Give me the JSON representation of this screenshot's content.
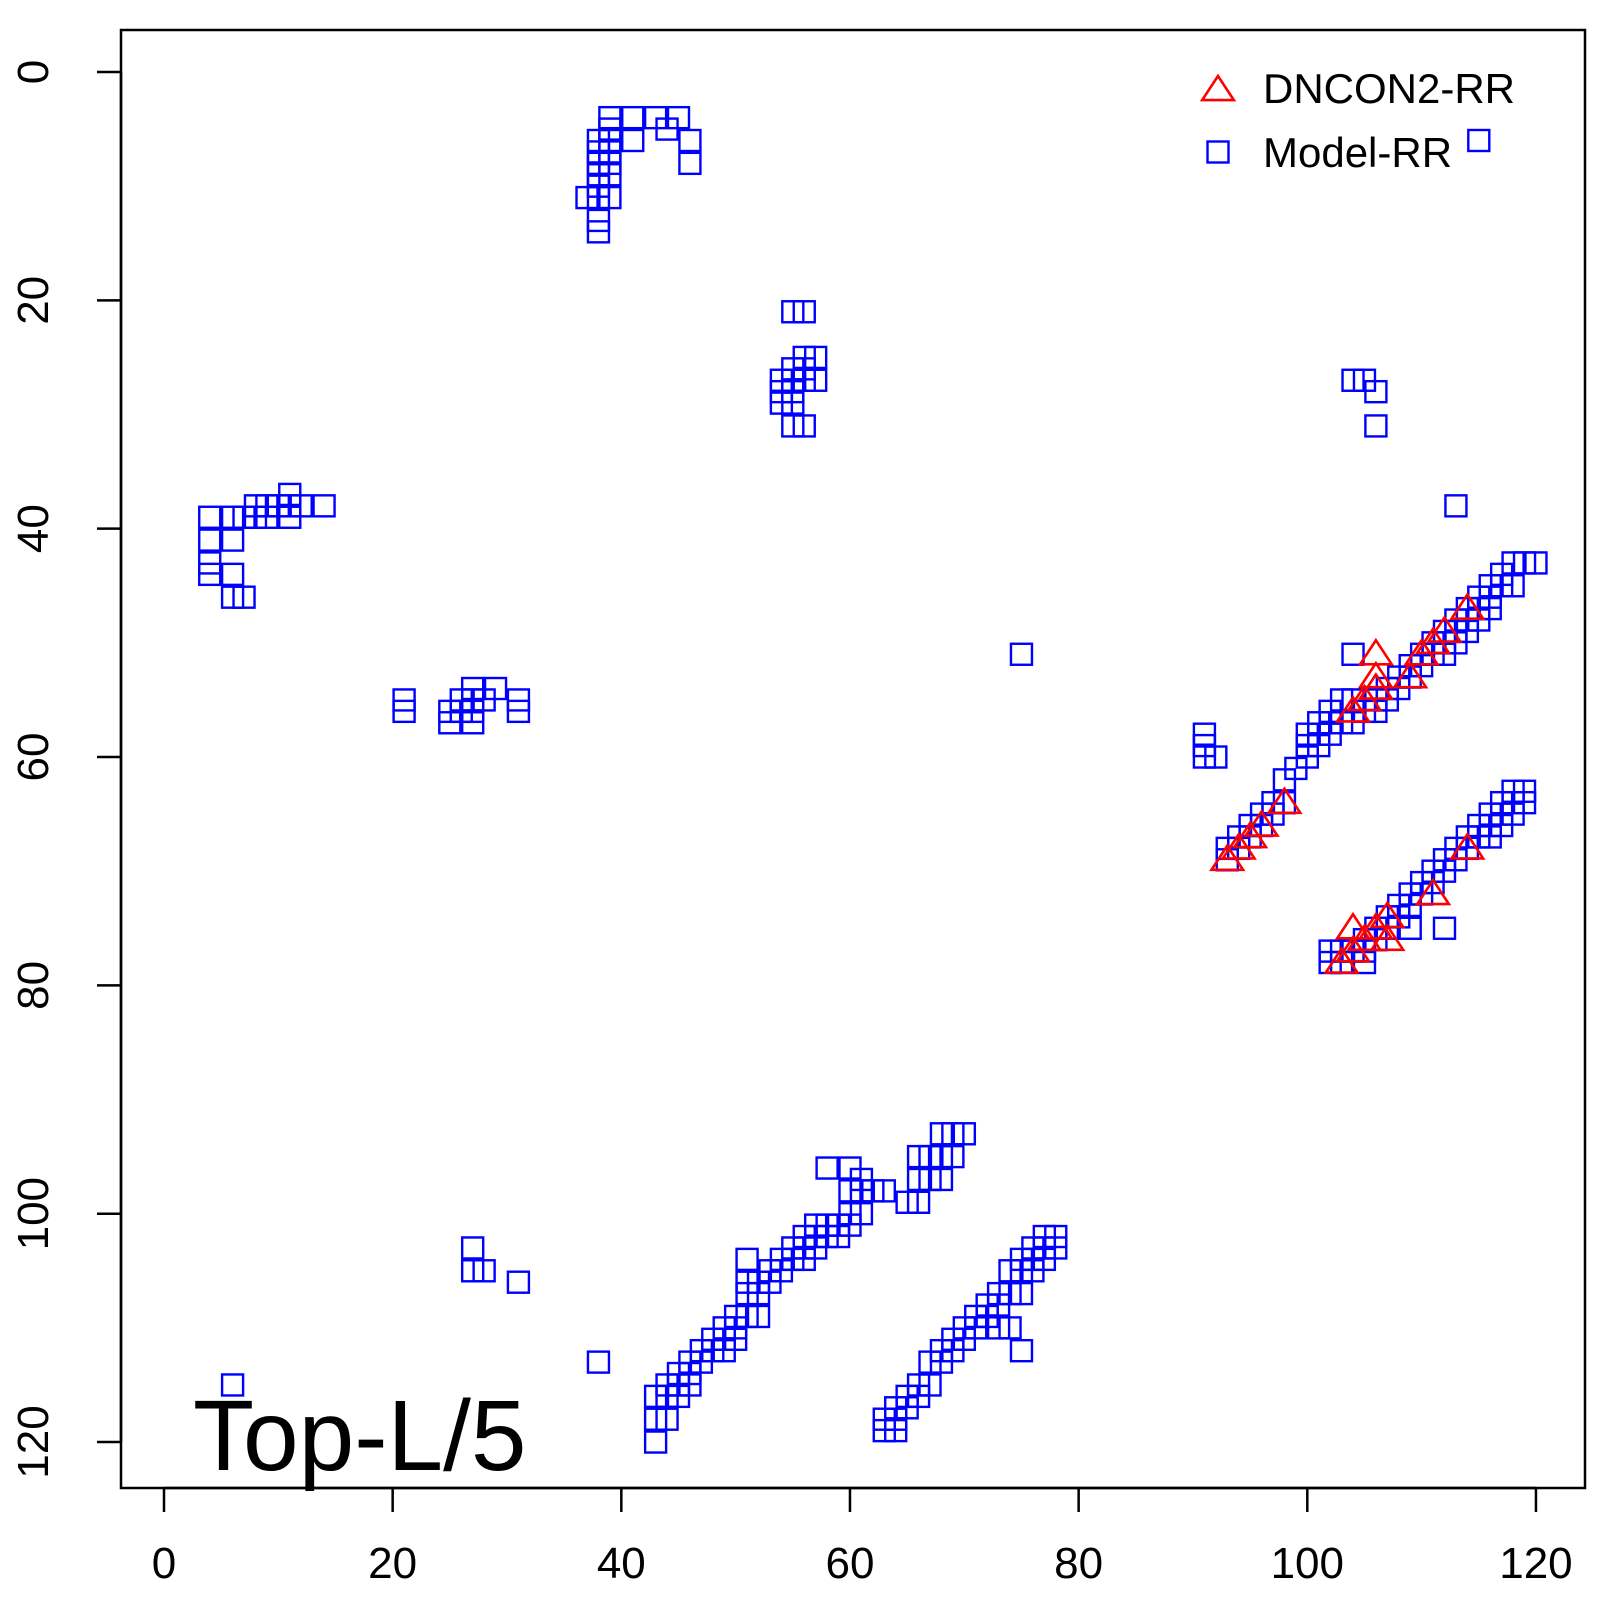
{
  "chart_data": {
    "type": "scatter",
    "title": "",
    "xlabel": "",
    "ylabel": "",
    "xlim": [
      -4,
      125
    ],
    "ylim": [
      -4,
      125
    ],
    "y_reversed": true,
    "x_ticks": [
      0,
      20,
      40,
      60,
      80,
      100,
      120
    ],
    "y_ticks": [
      0,
      20,
      40,
      60,
      80,
      100,
      120
    ],
    "grid": false,
    "legend_position": "top-right",
    "panel_label": "Top-L/5",
    "series": [
      {
        "name": "DNCON2-RR",
        "marker": "triangle",
        "color": "#ff0000",
        "points": [
          [
            114,
            47
          ],
          [
            112,
            49
          ],
          [
            111,
            50
          ],
          [
            110,
            51
          ],
          [
            109,
            53
          ],
          [
            106,
            51
          ],
          [
            106,
            53
          ],
          [
            106,
            54
          ],
          [
            105,
            55
          ],
          [
            104,
            56
          ],
          [
            98,
            64
          ],
          [
            96,
            66
          ],
          [
            95,
            67
          ],
          [
            94,
            68
          ],
          [
            93,
            69
          ],
          [
            114,
            68
          ],
          [
            111,
            72
          ],
          [
            107,
            74
          ],
          [
            107,
            76
          ],
          [
            106,
            75
          ],
          [
            105,
            76
          ],
          [
            104,
            75
          ],
          [
            104,
            77
          ],
          [
            103,
            78
          ]
        ]
      },
      {
        "name": "Model-RR",
        "marker": "square",
        "color": "#0000ff",
        "points": [
          [
            39,
            4
          ],
          [
            41,
            4
          ],
          [
            43,
            4
          ],
          [
            45,
            4
          ],
          [
            39,
            5
          ],
          [
            44,
            5
          ],
          [
            38,
            6
          ],
          [
            39,
            6
          ],
          [
            41,
            6
          ],
          [
            46,
            6
          ],
          [
            115,
            6
          ],
          [
            38,
            7
          ],
          [
            39,
            7
          ],
          [
            38,
            8
          ],
          [
            39,
            8
          ],
          [
            46,
            8
          ],
          [
            38,
            9
          ],
          [
            39,
            9
          ],
          [
            38,
            10
          ],
          [
            37,
            11
          ],
          [
            38,
            11
          ],
          [
            39,
            11
          ],
          [
            38,
            13
          ],
          [
            38,
            14
          ],
          [
            55,
            21
          ],
          [
            56,
            21
          ],
          [
            56,
            25
          ],
          [
            57,
            25
          ],
          [
            55,
            26
          ],
          [
            56,
            26
          ],
          [
            54,
            27
          ],
          [
            55,
            27
          ],
          [
            56,
            27
          ],
          [
            57,
            27
          ],
          [
            54,
            28
          ],
          [
            55,
            28
          ],
          [
            104,
            27
          ],
          [
            105,
            27
          ],
          [
            106,
            28
          ],
          [
            54,
            29
          ],
          [
            55,
            29
          ],
          [
            55,
            31
          ],
          [
            56,
            31
          ],
          [
            106,
            31
          ],
          [
            11,
            37
          ],
          [
            8,
            38
          ],
          [
            9,
            38
          ],
          [
            10,
            38
          ],
          [
            11,
            38
          ],
          [
            12,
            38
          ],
          [
            14,
            38
          ],
          [
            113,
            38
          ],
          [
            4,
            39
          ],
          [
            6,
            39
          ],
          [
            7,
            39
          ],
          [
            8,
            39
          ],
          [
            9,
            39
          ],
          [
            11,
            39
          ],
          [
            4,
            41
          ],
          [
            6,
            41
          ],
          [
            4,
            43
          ],
          [
            4,
            44
          ],
          [
            6,
            44
          ],
          [
            6,
            46
          ],
          [
            7,
            46
          ],
          [
            75,
            51
          ],
          [
            104,
            51
          ],
          [
            21,
            55
          ],
          [
            21,
            56
          ],
          [
            26,
            55
          ],
          [
            27,
            55
          ],
          [
            28,
            55
          ],
          [
            29,
            54
          ],
          [
            27,
            54
          ],
          [
            31,
            55
          ],
          [
            31,
            56
          ],
          [
            25,
            56
          ],
          [
            26,
            56
          ],
          [
            27,
            56
          ],
          [
            25,
            57
          ],
          [
            27,
            57
          ],
          [
            118,
            43
          ],
          [
            119,
            43
          ],
          [
            120,
            43
          ],
          [
            117,
            44
          ],
          [
            116,
            45
          ],
          [
            117,
            45
          ],
          [
            118,
            45
          ],
          [
            115,
            46
          ],
          [
            116,
            46
          ],
          [
            114,
            47
          ],
          [
            115,
            47
          ],
          [
            116,
            47
          ],
          [
            113,
            48
          ],
          [
            114,
            48
          ],
          [
            115,
            48
          ],
          [
            112,
            49
          ],
          [
            113,
            49
          ],
          [
            114,
            49
          ],
          [
            111,
            50
          ],
          [
            112,
            50
          ],
          [
            113,
            50
          ],
          [
            110,
            51
          ],
          [
            111,
            51
          ],
          [
            112,
            51
          ],
          [
            109,
            52
          ],
          [
            110,
            52
          ],
          [
            108,
            53
          ],
          [
            109,
            53
          ],
          [
            107,
            54
          ],
          [
            108,
            54
          ],
          [
            106,
            55
          ],
          [
            107,
            55
          ],
          [
            105,
            56
          ],
          [
            106,
            56
          ],
          [
            103,
            55
          ],
          [
            104,
            55
          ],
          [
            103,
            57
          ],
          [
            104,
            57
          ],
          [
            102,
            56
          ],
          [
            101,
            57
          ],
          [
            102,
            57
          ],
          [
            100,
            58
          ],
          [
            101,
            58
          ],
          [
            102,
            58
          ],
          [
            100,
            59
          ],
          [
            101,
            59
          ],
          [
            100,
            60
          ],
          [
            99,
            61
          ],
          [
            98,
            62
          ],
          [
            91,
            58
          ],
          [
            91,
            59
          ],
          [
            91,
            60
          ],
          [
            92,
            60
          ],
          [
            97,
            64
          ],
          [
            98,
            64
          ],
          [
            96,
            65
          ],
          [
            97,
            65
          ],
          [
            95,
            66
          ],
          [
            96,
            66
          ],
          [
            94,
            67
          ],
          [
            95,
            67
          ],
          [
            93,
            68
          ],
          [
            94,
            68
          ],
          [
            93,
            69
          ],
          [
            118,
            63
          ],
          [
            119,
            63
          ],
          [
            117,
            64
          ],
          [
            118,
            64
          ],
          [
            119,
            64
          ],
          [
            116,
            65
          ],
          [
            117,
            65
          ],
          [
            118,
            65
          ],
          [
            115,
            66
          ],
          [
            116,
            66
          ],
          [
            117,
            66
          ],
          [
            114,
            67
          ],
          [
            115,
            67
          ],
          [
            116,
            67
          ],
          [
            113,
            68
          ],
          [
            114,
            68
          ],
          [
            112,
            69
          ],
          [
            113,
            69
          ],
          [
            111,
            70
          ],
          [
            112,
            70
          ],
          [
            110,
            71
          ],
          [
            111,
            71
          ],
          [
            109,
            72
          ],
          [
            110,
            72
          ],
          [
            108,
            73
          ],
          [
            109,
            73
          ],
          [
            107,
            74
          ],
          [
            108,
            74
          ],
          [
            106,
            75
          ],
          [
            107,
            75
          ],
          [
            109,
            75
          ],
          [
            112,
            75
          ],
          [
            105,
            76
          ],
          [
            106,
            76
          ],
          [
            104,
            77
          ],
          [
            105,
            77
          ],
          [
            102,
            77
          ],
          [
            103,
            77
          ],
          [
            102,
            78
          ],
          [
            103,
            78
          ],
          [
            105,
            78
          ],
          [
            58,
            96
          ],
          [
            60,
            96
          ],
          [
            68,
            93
          ],
          [
            69,
            93
          ],
          [
            70,
            93
          ],
          [
            66,
            95
          ],
          [
            67,
            95
          ],
          [
            68,
            95
          ],
          [
            69,
            95
          ],
          [
            61,
            97
          ],
          [
            66,
            97
          ],
          [
            67,
            97
          ],
          [
            68,
            97
          ],
          [
            60,
            98
          ],
          [
            61,
            98
          ],
          [
            62,
            98
          ],
          [
            63,
            98
          ],
          [
            65,
            99
          ],
          [
            66,
            99
          ],
          [
            60,
            100
          ],
          [
            61,
            100
          ],
          [
            57,
            101
          ],
          [
            58,
            101
          ],
          [
            59,
            101
          ],
          [
            60,
            101
          ],
          [
            56,
            102
          ],
          [
            57,
            102
          ],
          [
            58,
            102
          ],
          [
            59,
            102
          ],
          [
            55,
            103
          ],
          [
            56,
            103
          ],
          [
            57,
            103
          ],
          [
            54,
            104
          ],
          [
            55,
            104
          ],
          [
            56,
            104
          ],
          [
            51,
            104
          ],
          [
            53,
            105
          ],
          [
            54,
            105
          ],
          [
            51,
            106
          ],
          [
            52,
            106
          ],
          [
            53,
            106
          ],
          [
            27,
            103
          ],
          [
            27,
            105
          ],
          [
            28,
            105
          ],
          [
            31,
            106
          ],
          [
            51,
            107
          ],
          [
            52,
            107
          ],
          [
            50,
            109
          ],
          [
            51,
            109
          ],
          [
            52,
            109
          ],
          [
            49,
            110
          ],
          [
            50,
            110
          ],
          [
            48,
            111
          ],
          [
            49,
            111
          ],
          [
            50,
            111
          ],
          [
            47,
            112
          ],
          [
            48,
            112
          ],
          [
            49,
            112
          ],
          [
            46,
            113
          ],
          [
            47,
            113
          ],
          [
            45,
            114
          ],
          [
            46,
            114
          ],
          [
            38,
            113
          ],
          [
            44,
            115
          ],
          [
            45,
            115
          ],
          [
            46,
            115
          ],
          [
            43,
            116
          ],
          [
            44,
            116
          ],
          [
            45,
            116
          ],
          [
            43,
            118
          ],
          [
            44,
            118
          ],
          [
            43,
            120
          ],
          [
            6,
            115
          ],
          [
            77,
            102
          ],
          [
            78,
            102
          ],
          [
            76,
            103
          ],
          [
            77,
            103
          ],
          [
            78,
            103
          ],
          [
            75,
            104
          ],
          [
            76,
            104
          ],
          [
            77,
            104
          ],
          [
            74,
            105
          ],
          [
            75,
            105
          ],
          [
            76,
            105
          ],
          [
            73,
            107
          ],
          [
            74,
            107
          ],
          [
            75,
            107
          ],
          [
            72,
            108
          ],
          [
            73,
            108
          ],
          [
            71,
            109
          ],
          [
            72,
            109
          ],
          [
            70,
            110
          ],
          [
            71,
            110
          ],
          [
            73,
            110
          ],
          [
            74,
            110
          ],
          [
            69,
            111
          ],
          [
            70,
            111
          ],
          [
            68,
            112
          ],
          [
            69,
            112
          ],
          [
            75,
            112
          ],
          [
            67,
            113
          ],
          [
            68,
            113
          ],
          [
            66,
            115
          ],
          [
            67,
            115
          ],
          [
            65,
            116
          ],
          [
            66,
            116
          ],
          [
            64,
            117
          ],
          [
            65,
            117
          ],
          [
            63,
            118
          ],
          [
            64,
            118
          ],
          [
            63,
            119
          ],
          [
            64,
            119
          ]
        ]
      }
    ]
  }
}
